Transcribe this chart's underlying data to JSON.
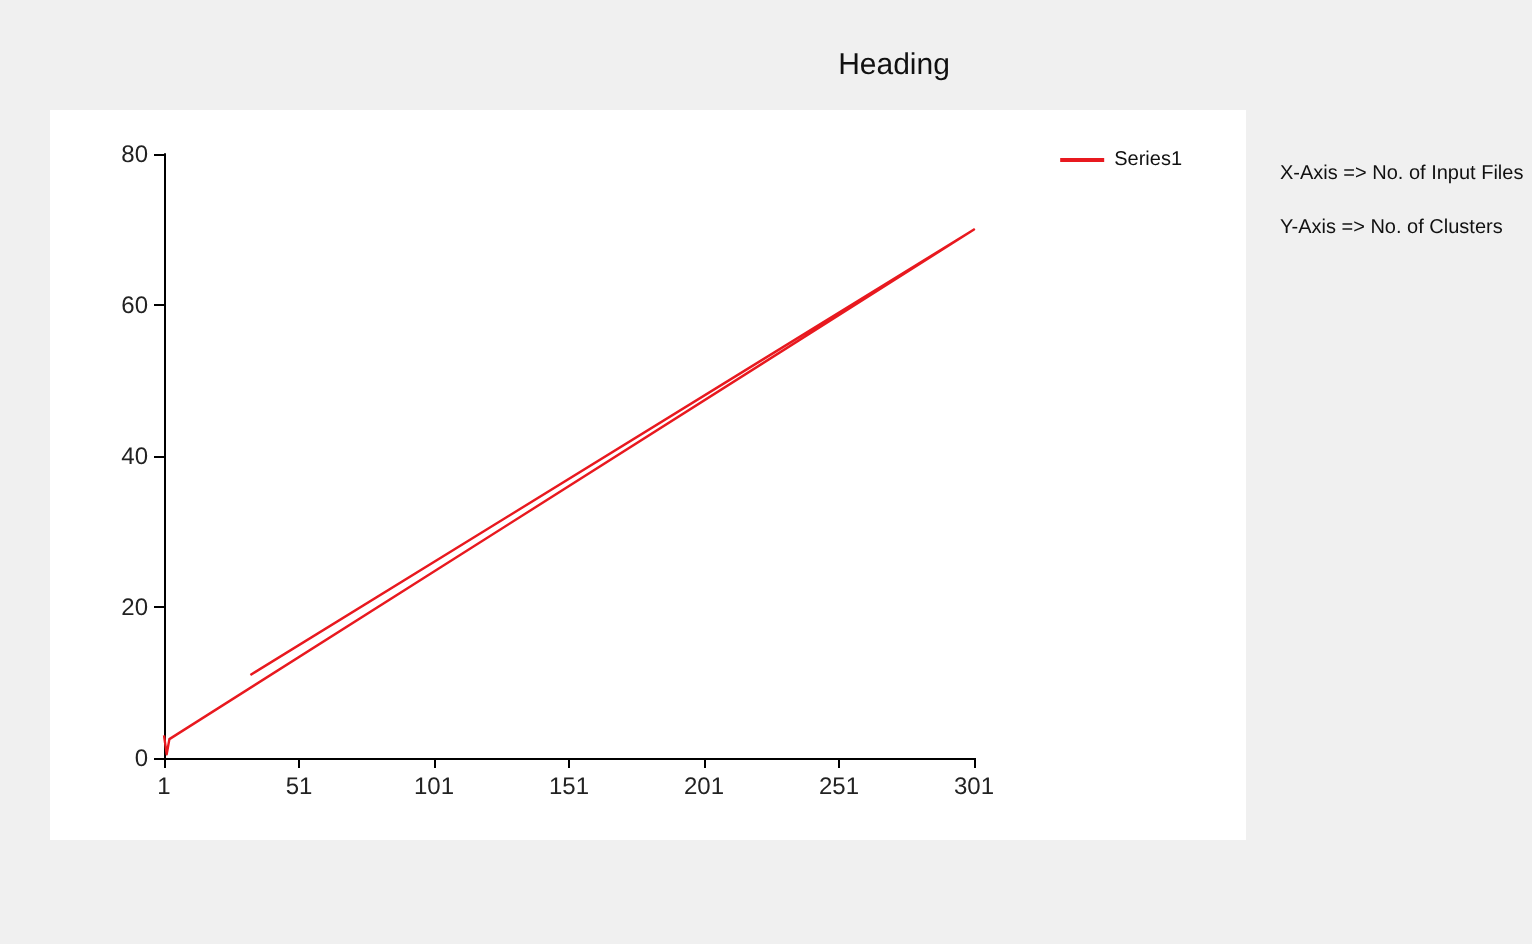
{
  "chart_data": {
    "type": "line",
    "title": "Heading",
    "annotations": [
      "X-Axis => No. of Input Files",
      "Y-Axis => No. of Clusters"
    ],
    "series": [
      {
        "name": "Series1",
        "color": "#e8191f",
        "x": [
          1,
          2,
          3,
          301,
          33
        ],
        "values": [
          3,
          0.5,
          2.5,
          70,
          11
        ]
      }
    ],
    "xlim": [
      1,
      301
    ],
    "xticks": [
      1,
      51,
      101,
      151,
      201,
      251,
      301
    ],
    "ylim": [
      0,
      80
    ],
    "yticks": [
      0,
      20,
      40,
      60,
      80
    ],
    "grid": false,
    "legend": "top right",
    "marker": "none",
    "line_style": "solid"
  }
}
